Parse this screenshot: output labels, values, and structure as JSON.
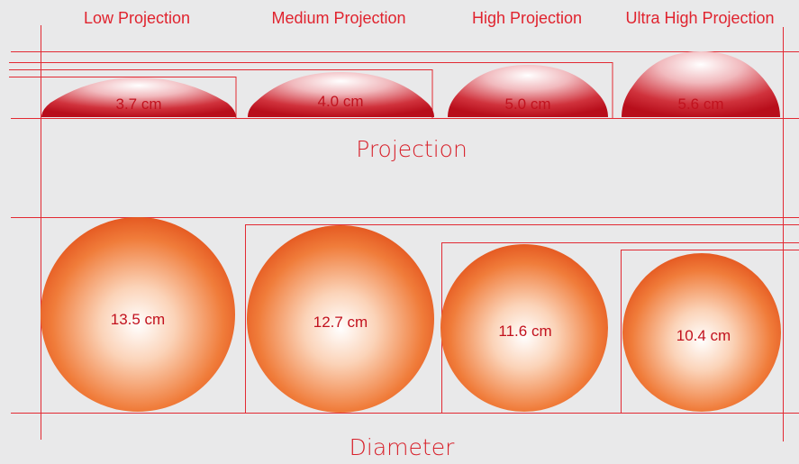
{
  "columns": [
    {
      "id": "low",
      "title": "Low Projection",
      "projection": "3.7 cm",
      "diameter": "13.5 cm"
    },
    {
      "id": "medium",
      "title": "Medium Projection",
      "projection": "4.0 cm",
      "diameter": "12.7 cm"
    },
    {
      "id": "high",
      "title": "High Projection",
      "projection": "5.0 cm",
      "diameter": "11.6 cm"
    },
    {
      "id": "ultra",
      "title": "Ultra High Projection",
      "projection": "5.6 cm",
      "diameter": "10.4 cm"
    }
  ],
  "sections": {
    "projection_label": "Projection",
    "diameter_label": "Diameter"
  },
  "colors": {
    "guide_line": "#e22a33",
    "implant_dark": "#c0101c",
    "implant_light": "#ffffff",
    "circle_dark": "#ea5a22",
    "circle_light": "#ffffff",
    "text": "#e0232e",
    "background": "#e9e9ea"
  }
}
